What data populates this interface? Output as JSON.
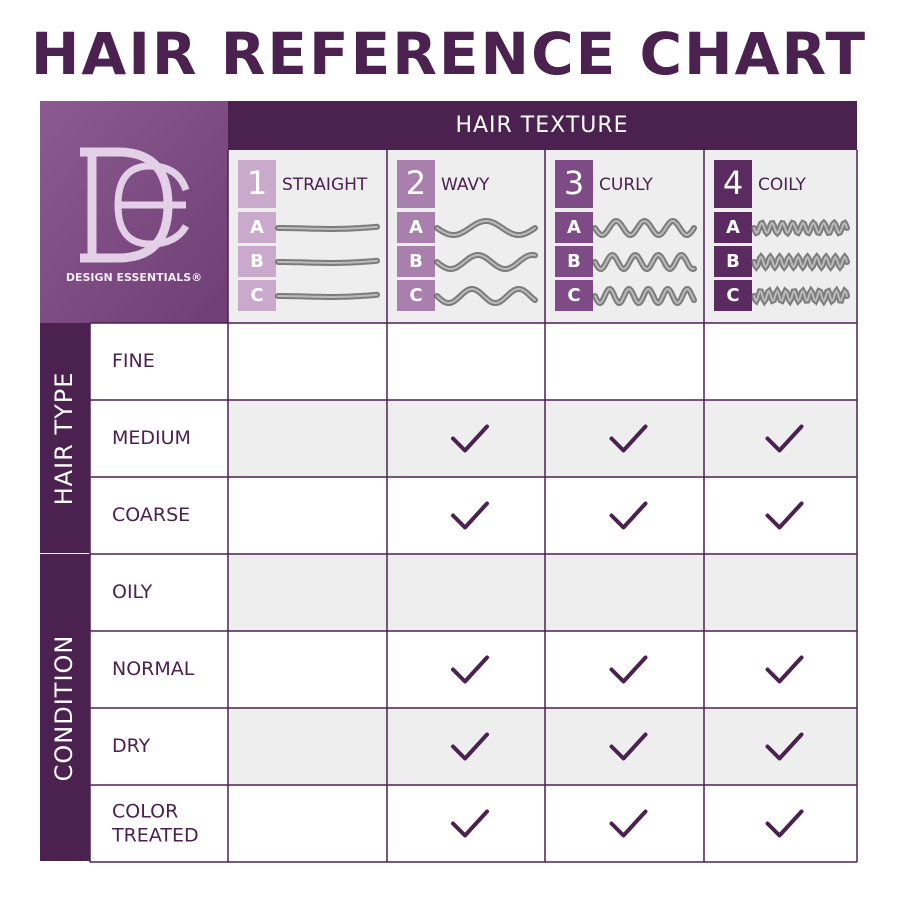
{
  "title": "HAIR REFERENCE CHART",
  "logo": {
    "brand": "DESIGN ESSENTIALS®"
  },
  "table": {
    "header": "HAIR TEXTURE",
    "columns": [
      {
        "number": 1,
        "name": "STRAIGHT",
        "subtypes": [
          "A",
          "B",
          "C"
        ]
      },
      {
        "number": 2,
        "name": "WAVY",
        "subtypes": [
          "A",
          "B",
          "C"
        ]
      },
      {
        "number": 3,
        "name": "CURLY",
        "subtypes": [
          "A",
          "B",
          "C"
        ]
      },
      {
        "number": 4,
        "name": "COILY",
        "subtypes": [
          "A",
          "B",
          "C"
        ]
      }
    ],
    "groups": [
      {
        "label": "HAIR TYPE",
        "rows": [
          {
            "label": "FINE",
            "checks": [
              false,
              false,
              false,
              false
            ]
          },
          {
            "label": "MEDIUM",
            "checks": [
              false,
              true,
              true,
              true
            ]
          },
          {
            "label": "COARSE",
            "checks": [
              false,
              true,
              true,
              true
            ]
          }
        ]
      },
      {
        "label": "CONDITION",
        "rows": [
          {
            "label": "OILY",
            "checks": [
              false,
              false,
              false,
              false
            ]
          },
          {
            "label": "NORMAL",
            "checks": [
              false,
              true,
              true,
              true
            ]
          },
          {
            "label": "DRY",
            "checks": [
              false,
              true,
              true,
              true
            ]
          },
          {
            "label": "COLOR TREATED",
            "checks": [
              false,
              true,
              true,
              true
            ]
          }
        ]
      }
    ]
  }
}
